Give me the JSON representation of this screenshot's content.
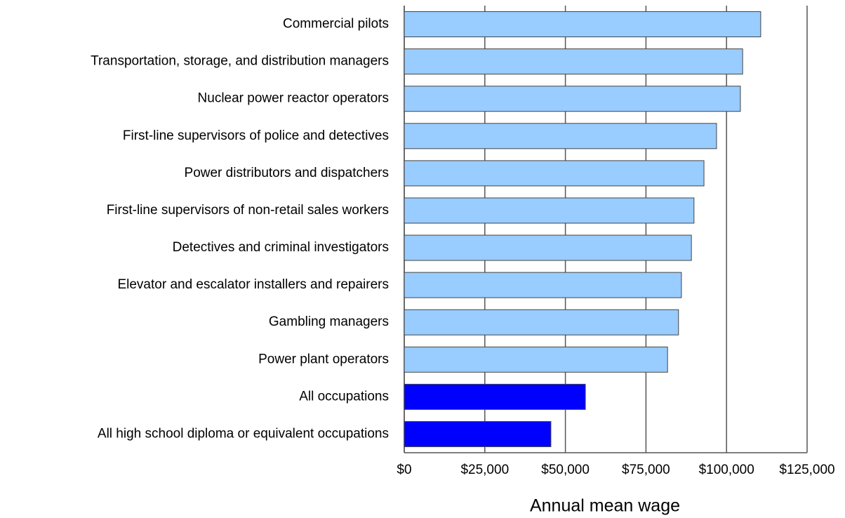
{
  "chart_data": {
    "type": "barh",
    "categories": [
      "Commercial pilots",
      "Transportation, storage, and distribution managers",
      "Nuclear power reactor operators",
      "First-line supervisors of police and detectives",
      "Power distributors and dispatchers",
      "First-line supervisors of non-retail sales workers",
      "Detectives and criminal investigators",
      "Elevator and escalator installers and repairers",
      "Gambling managers",
      "Power plant operators",
      "All occupations",
      "All high school diploma or equivalent occupations"
    ],
    "values": [
      110600,
      105000,
      104300,
      96900,
      93000,
      89900,
      89100,
      86000,
      85100,
      81700,
      56200,
      45500
    ],
    "colors": [
      "#99ccff",
      "#99ccff",
      "#99ccff",
      "#99ccff",
      "#99ccff",
      "#99ccff",
      "#99ccff",
      "#99ccff",
      "#99ccff",
      "#99ccff",
      "#0000ff",
      "#0000ff"
    ],
    "xlabel": "Annual mean wage",
    "xlim": [
      0,
      125000
    ],
    "xticks": [
      {
        "value": 0,
        "label": "$0"
      },
      {
        "value": 25000,
        "label": "$25,000"
      },
      {
        "value": 50000,
        "label": "$50,000"
      },
      {
        "value": 75000,
        "label": "$75,000"
      },
      {
        "value": 100000,
        "label": "$100,000"
      },
      {
        "value": 125000,
        "label": "$125,000"
      }
    ],
    "grid": true
  }
}
